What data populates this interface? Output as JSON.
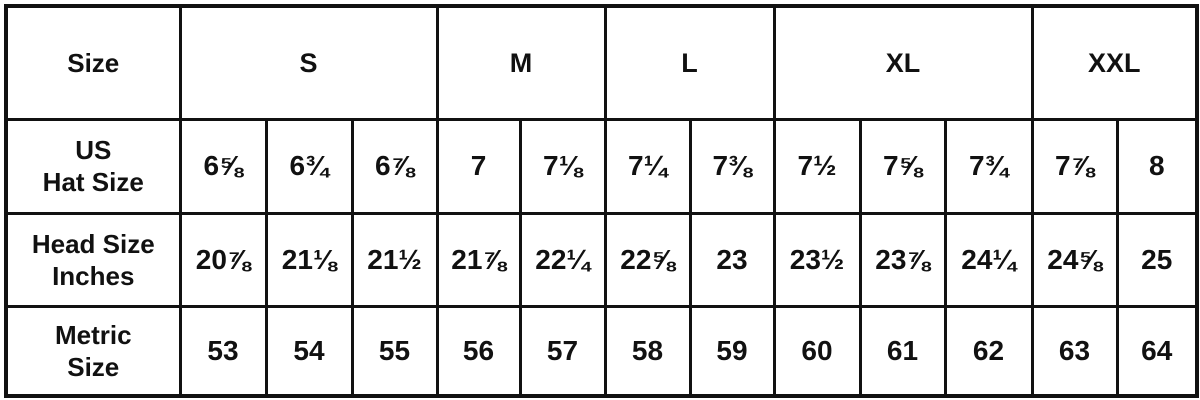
{
  "table": {
    "size_label": "Size",
    "sizes": [
      {
        "label": "S",
        "span": 3
      },
      {
        "label": "M",
        "span": 2
      },
      {
        "label": "L",
        "span": 2
      },
      {
        "label": "XL",
        "span": 3
      },
      {
        "label": "XXL",
        "span": 2
      }
    ],
    "rows": [
      {
        "label_line1": "US",
        "label_line2": "Hat Size",
        "values": [
          "6⅝",
          "6¾",
          "6⅞",
          "7",
          "7⅛",
          "7¼",
          "7⅜",
          "7½",
          "7⅝",
          "7¾",
          "7⅞",
          "8"
        ]
      },
      {
        "label_line1": "Head Size",
        "label_line2": "Inches",
        "values": [
          "20⅞",
          "21⅛",
          "21½",
          "21⅞",
          "22¼",
          "22⅝",
          "23",
          "23½",
          "23⅞",
          "24¼",
          "24⅝",
          "25"
        ]
      },
      {
        "label_line1": "Metric",
        "label_line2": "Size",
        "values": [
          "53",
          "54",
          "55",
          "56",
          "57",
          "58",
          "59",
          "60",
          "61",
          "62",
          "63",
          "64"
        ]
      }
    ]
  }
}
